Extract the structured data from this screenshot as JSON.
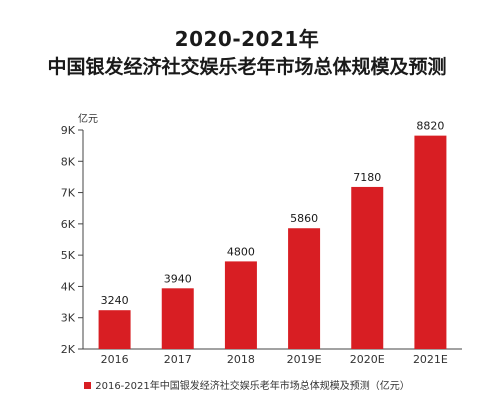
{
  "chart_data": {
    "type": "bar",
    "title": "2020-2021年",
    "subtitle": "中国银发经济社交娱乐老年市场总体规模及预测",
    "ylabel": "亿元",
    "categories": [
      "2016",
      "2017",
      "2018",
      "2019E",
      "2020E",
      "2021E"
    ],
    "values": [
      3240,
      3940,
      4800,
      5860,
      7180,
      8820
    ],
    "data_labels": [
      "3240",
      "3940",
      "4800",
      "5860",
      "7180",
      "8820"
    ],
    "ylim": [
      2000,
      9000
    ],
    "y_ticks": [
      2000,
      3000,
      4000,
      5000,
      6000,
      7000,
      8000,
      9000
    ],
    "y_tick_labels": [
      "2K",
      "3K",
      "4K",
      "5K",
      "6K",
      "7K",
      "8K",
      "9K"
    ],
    "grid": false,
    "legend_position": "bottom",
    "series": [
      {
        "name": "2016-2021年中国银发经济社交娱乐老年市场总体规模及预测（亿元）",
        "values": [
          3240,
          3940,
          4800,
          5860,
          7180,
          8820
        ],
        "color": "#d81e23"
      }
    ]
  }
}
